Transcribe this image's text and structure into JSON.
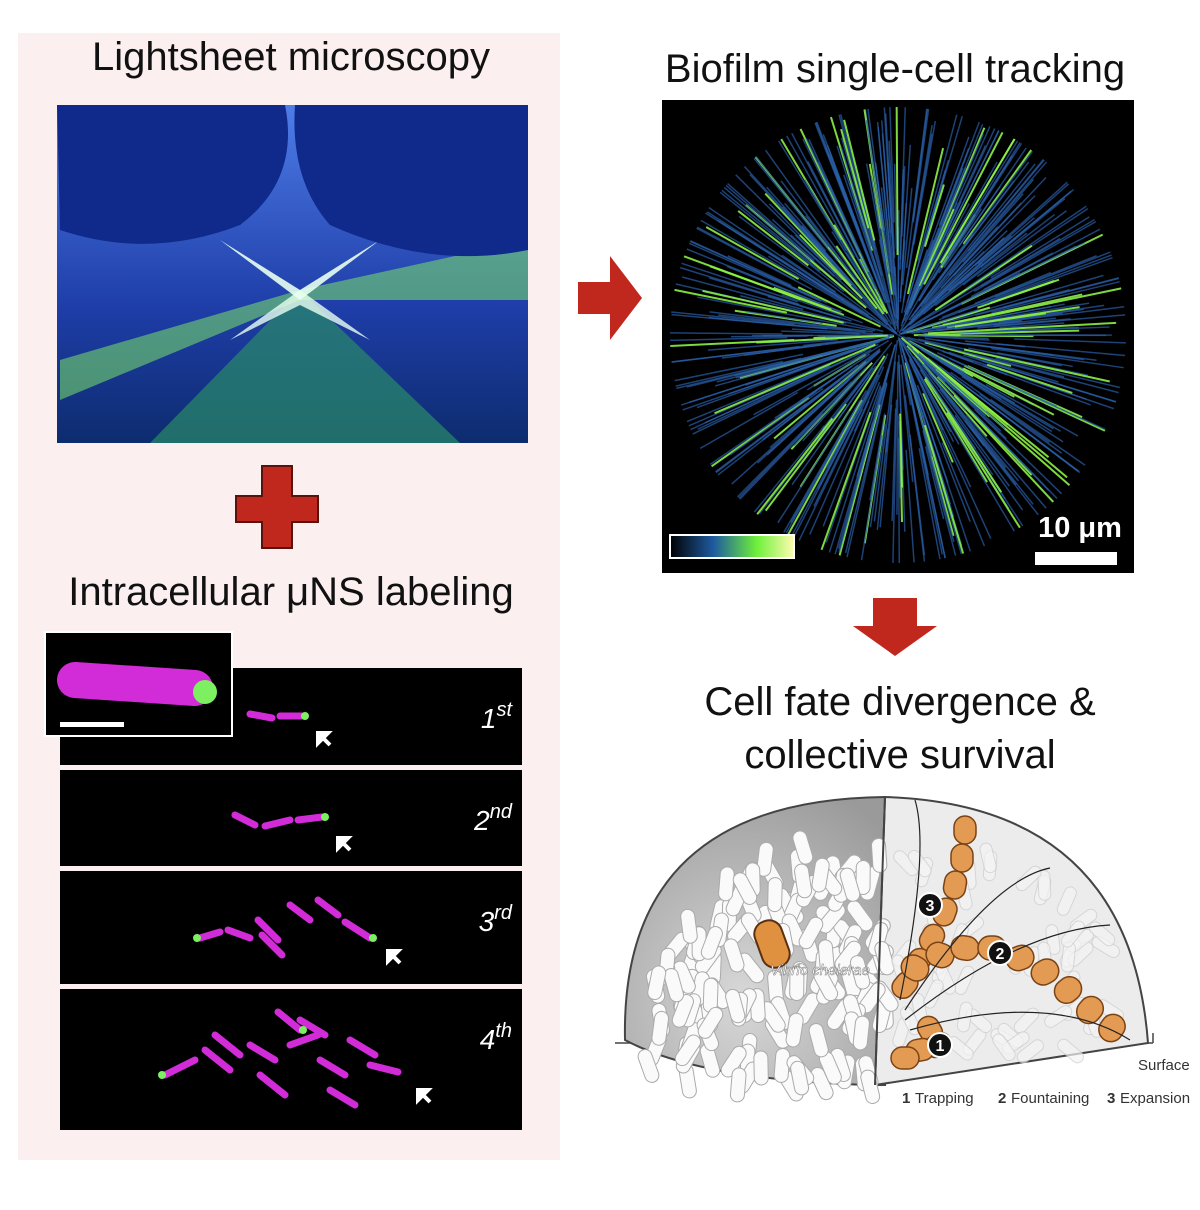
{
  "panels": {
    "lightsheet": {
      "title": "Lightsheet microscopy"
    },
    "tracking": {
      "title": "Biofilm single-cell tracking",
      "scale_bar": "10 μm"
    },
    "labeling": {
      "title": "Intracellular μNS labeling",
      "frames": [
        {
          "number": "1",
          "suffix": "st"
        },
        {
          "number": "2",
          "suffix": "nd"
        },
        {
          "number": "3",
          "suffix": "rd"
        },
        {
          "number": "4",
          "suffix": "th"
        }
      ]
    },
    "fate": {
      "title_lines": [
        "Cell fate divergence &",
        "collective survival"
      ],
      "species": "Vibrio cholerae",
      "surface": "Surface",
      "stages": [
        {
          "number": "1",
          "label": "Trapping"
        },
        {
          "number": "2",
          "label": "Fountaining"
        },
        {
          "number": "3",
          "label": "Expansion"
        }
      ]
    }
  }
}
